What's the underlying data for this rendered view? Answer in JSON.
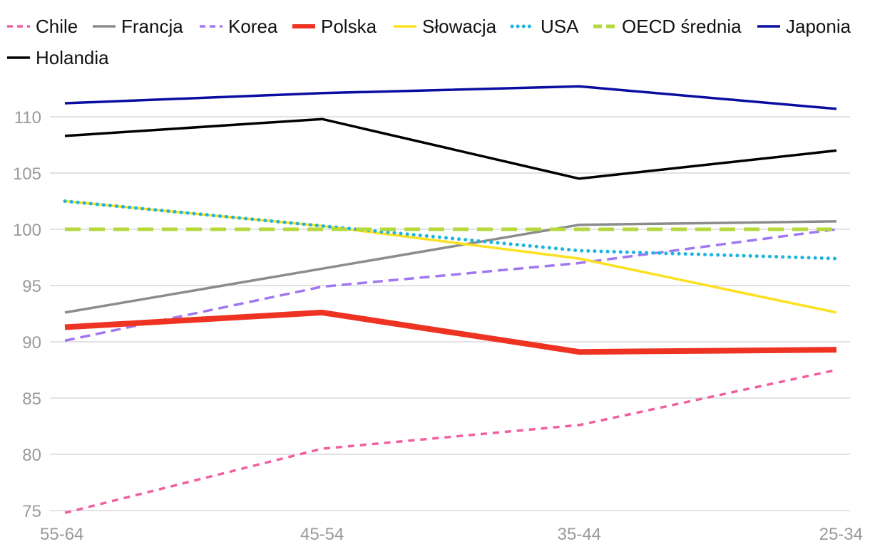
{
  "chart_data": {
    "type": "line",
    "title": "",
    "xlabel": "",
    "ylabel": "",
    "categories": [
      "55-64",
      "45-54",
      "35-44",
      "25-34"
    ],
    "ylim": [
      75,
      113
    ],
    "yticks": [
      75,
      80,
      85,
      90,
      95,
      100,
      105,
      110
    ],
    "grid": "horizontal",
    "legend_position": "top",
    "series": [
      {
        "name": "Chile",
        "color": "#f060a0",
        "style": "dashed-fine",
        "values": [
          74.8,
          80.5,
          82.6,
          87.5
        ]
      },
      {
        "name": "Francja",
        "color": "#8c8c8c",
        "style": "solid",
        "values": [
          92.6,
          96.5,
          100.4,
          100.7
        ]
      },
      {
        "name": "Korea",
        "color": "#a077f0",
        "style": "dashed",
        "values": [
          90.1,
          94.9,
          97.0,
          100.0
        ]
      },
      {
        "name": "Polska",
        "color": "#ee3322",
        "style": "solid-thick",
        "values": [
          91.3,
          92.6,
          89.1,
          89.3
        ]
      },
      {
        "name": "Słowacja",
        "color": "#fde020",
        "style": "solid",
        "values": [
          102.5,
          100.3,
          97.4,
          92.6
        ]
      },
      {
        "name": "USA",
        "color": "#1eb4e0",
        "style": "dotted",
        "values": [
          102.5,
          100.3,
          98.1,
          97.4
        ]
      },
      {
        "name": "OECD średnia",
        "color": "#b5d83a",
        "style": "dashed-thick",
        "values": [
          100.0,
          100.0,
          100.0,
          100.0
        ]
      },
      {
        "name": "Japonia",
        "color": "#0a0ea0",
        "style": "solid",
        "values": [
          111.2,
          112.1,
          112.7,
          110.7
        ]
      },
      {
        "name": "Holandia",
        "color": "#000000",
        "style": "solid",
        "values": [
          108.3,
          109.8,
          104.5,
          107.0
        ]
      }
    ]
  }
}
